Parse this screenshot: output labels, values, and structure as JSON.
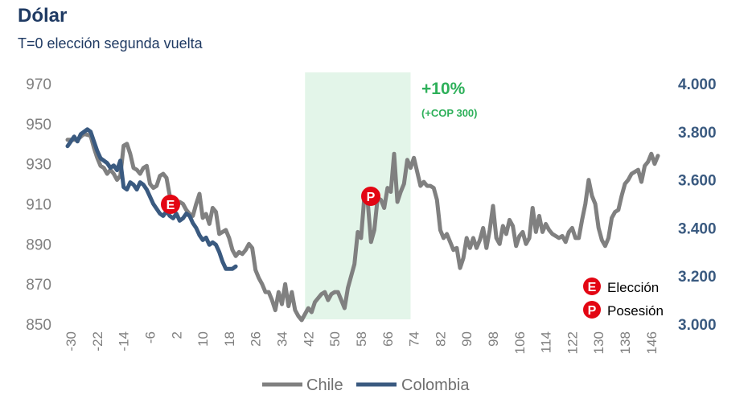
{
  "title": "Dólar",
  "subtitle": "T=0 elección segunda vuelta",
  "colors": {
    "chile": "#808080",
    "colombia": "#3a5a80",
    "highlight": "#e3f5e9",
    "marker": "#e30613",
    "annotation": "#2eb05a"
  },
  "annotation": {
    "main": "+10%",
    "sub": "(+COP 300)"
  },
  "markers": {
    "E": "E",
    "P": "P"
  },
  "marker_key": [
    {
      "letter": "E",
      "label": "Elección"
    },
    {
      "letter": "P",
      "label": "Posesión"
    }
  ],
  "chart_data": {
    "type": "line",
    "title": "Dólar",
    "subtitle": "T=0 elección segunda vuelta",
    "x_ticks": [
      -30,
      -22,
      -14,
      -6,
      2,
      10,
      18,
      26,
      34,
      42,
      50,
      58,
      66,
      74,
      82,
      90,
      98,
      106,
      114,
      122,
      130,
      138,
      146
    ],
    "xlim": [
      -31,
      148
    ],
    "ylim_left": [
      850,
      970
    ],
    "ylim_right": [
      3000,
      4000
    ],
    "left_ticks": [
      "850",
      "870",
      "890",
      "910",
      "930",
      "950",
      "970"
    ],
    "right_ticks": [
      "3.000",
      "3.200",
      "3.400",
      "3.600",
      "3.800",
      "4.000"
    ],
    "highlight_range": [
      41,
      73
    ],
    "legend": [
      "Chile",
      "Colombia"
    ],
    "series": [
      {
        "name": "Chile",
        "axis": "left",
        "points": [
          [
            -31,
            942
          ],
          [
            -28,
            942
          ],
          [
            -26,
            945
          ],
          [
            -24,
            944
          ],
          [
            -23,
            938
          ],
          [
            -22,
            933
          ],
          [
            -21,
            929
          ],
          [
            -20,
            928
          ],
          [
            -19,
            925
          ],
          [
            -18,
            927
          ],
          [
            -17,
            925
          ],
          [
            -16,
            922
          ],
          [
            -15,
            924
          ],
          [
            -14,
            939
          ],
          [
            -13,
            940
          ],
          [
            -12,
            935
          ],
          [
            -11,
            928
          ],
          [
            -10,
            927
          ],
          [
            -9,
            925
          ],
          [
            -8,
            928
          ],
          [
            -7,
            929
          ],
          [
            -6,
            920
          ],
          [
            -5,
            918
          ],
          [
            -4,
            919
          ],
          [
            -3,
            924
          ],
          [
            -2,
            925
          ],
          [
            -1,
            923
          ],
          [
            0,
            914
          ],
          [
            1,
            913
          ],
          [
            2,
            911
          ],
          [
            3,
            911
          ],
          [
            4,
            910
          ],
          [
            5,
            907
          ],
          [
            6,
            905
          ],
          [
            7,
            904
          ],
          [
            8,
            910
          ],
          [
            9,
            915
          ],
          [
            10,
            903
          ],
          [
            11,
            905
          ],
          [
            12,
            900
          ],
          [
            13,
            908
          ],
          [
            14,
            906
          ],
          [
            15,
            895
          ],
          [
            16,
            896
          ],
          [
            17,
            897
          ],
          [
            18,
            893
          ],
          [
            19,
            887
          ],
          [
            20,
            884
          ],
          [
            21,
            886
          ],
          [
            22,
            885
          ],
          [
            23,
            887
          ],
          [
            24,
            890
          ],
          [
            25,
            888
          ],
          [
            26,
            877
          ],
          [
            27,
            873
          ],
          [
            28,
            870
          ],
          [
            29,
            866
          ],
          [
            30,
            866
          ],
          [
            31,
            862
          ],
          [
            32,
            857
          ],
          [
            33,
            866
          ],
          [
            34,
            860
          ],
          [
            35,
            870
          ],
          [
            36,
            859
          ],
          [
            37,
            866
          ],
          [
            38,
            857
          ],
          [
            39,
            854
          ],
          [
            40,
            852
          ],
          [
            41,
            855
          ],
          [
            42,
            858
          ],
          [
            43,
            856
          ],
          [
            44,
            861
          ],
          [
            45,
            863
          ],
          [
            46,
            865
          ],
          [
            47,
            866
          ],
          [
            48,
            862
          ],
          [
            49,
            865
          ],
          [
            50,
            866
          ],
          [
            51,
            866
          ],
          [
            52,
            862
          ],
          [
            53,
            858
          ],
          [
            54,
            868
          ],
          [
            55,
            874
          ],
          [
            56,
            880
          ],
          [
            57,
            896
          ],
          [
            58,
            893
          ],
          [
            59,
            914
          ],
          [
            60,
            911
          ],
          [
            61,
            891
          ],
          [
            62,
            897
          ],
          [
            63,
            913
          ],
          [
            64,
            912
          ],
          [
            65,
            908
          ],
          [
            66,
            918
          ],
          [
            67,
            916
          ],
          [
            68,
            935
          ],
          [
            69,
            911
          ],
          [
            70,
            916
          ],
          [
            71,
            920
          ],
          [
            72,
            932
          ],
          [
            73,
            928
          ],
          [
            74,
            933
          ],
          [
            75,
            926
          ],
          [
            76,
            919
          ],
          [
            77,
            921
          ],
          [
            78,
            919
          ],
          [
            79,
            919
          ],
          [
            80,
            918
          ],
          [
            81,
            912
          ],
          [
            82,
            897
          ],
          [
            83,
            893
          ],
          [
            84,
            895
          ],
          [
            85,
            891
          ],
          [
            86,
            887
          ],
          [
            87,
            888
          ],
          [
            88,
            878
          ],
          [
            89,
            883
          ],
          [
            90,
            893
          ],
          [
            91,
            888
          ],
          [
            92,
            893
          ],
          [
            93,
            888
          ],
          [
            94,
            892
          ],
          [
            95,
            898
          ],
          [
            96,
            888
          ],
          [
            97,
            897
          ],
          [
            98,
            909
          ],
          [
            99,
            893
          ],
          [
            100,
            890
          ],
          [
            101,
            899
          ],
          [
            102,
            895
          ],
          [
            103,
            902
          ],
          [
            104,
            899
          ],
          [
            105,
            889
          ],
          [
            106,
            894
          ],
          [
            107,
            896
          ],
          [
            108,
            890
          ],
          [
            109,
            893
          ],
          [
            110,
            908
          ],
          [
            111,
            896
          ],
          [
            112,
            904
          ],
          [
            113,
            896
          ],
          [
            114,
            900
          ],
          [
            115,
            897
          ],
          [
            116,
            895
          ],
          [
            117,
            894
          ],
          [
            118,
            893
          ],
          [
            119,
            894
          ],
          [
            120,
            891
          ],
          [
            121,
            896
          ],
          [
            122,
            898
          ],
          [
            123,
            893
          ],
          [
            124,
            893
          ],
          [
            125,
            902
          ],
          [
            126,
            910
          ],
          [
            127,
            922
          ],
          [
            128,
            914
          ],
          [
            129,
            910
          ],
          [
            130,
            898
          ],
          [
            131,
            892
          ],
          [
            132,
            889
          ],
          [
            133,
            893
          ],
          [
            134,
            903
          ],
          [
            135,
            906
          ],
          [
            136,
            907
          ],
          [
            137,
            914
          ],
          [
            138,
            920
          ],
          [
            139,
            922
          ],
          [
            140,
            925
          ],
          [
            141,
            926
          ],
          [
            142,
            927
          ],
          [
            143,
            921
          ],
          [
            144,
            929
          ],
          [
            145,
            931
          ],
          [
            146,
            935
          ],
          [
            147,
            930
          ],
          [
            148,
            934
          ]
        ]
      },
      {
        "name": "Colombia",
        "axis": "right",
        "points": [
          [
            -31,
            3740
          ],
          [
            -30,
            3760
          ],
          [
            -29,
            3780
          ],
          [
            -28,
            3760
          ],
          [
            -27,
            3790
          ],
          [
            -26,
            3800
          ],
          [
            -25,
            3810
          ],
          [
            -24,
            3800
          ],
          [
            -23,
            3760
          ],
          [
            -22,
            3720
          ],
          [
            -21,
            3690
          ],
          [
            -20,
            3680
          ],
          [
            -19,
            3670
          ],
          [
            -18,
            3650
          ],
          [
            -17,
            3660
          ],
          [
            -16,
            3640
          ],
          [
            -15,
            3680
          ],
          [
            -14,
            3570
          ],
          [
            -13,
            3560
          ],
          [
            -12,
            3590
          ],
          [
            -11,
            3580
          ],
          [
            -10,
            3560
          ],
          [
            -9,
            3590
          ],
          [
            -8,
            3580
          ],
          [
            -7,
            3560
          ],
          [
            -6,
            3530
          ],
          [
            -5,
            3500
          ],
          [
            -4,
            3480
          ],
          [
            -3,
            3460
          ],
          [
            -2,
            3450
          ],
          [
            -1,
            3470
          ],
          [
            0,
            3450
          ],
          [
            1,
            3440
          ],
          [
            2,
            3460
          ],
          [
            3,
            3430
          ],
          [
            4,
            3440
          ],
          [
            5,
            3460
          ],
          [
            6,
            3450
          ],
          [
            7,
            3420
          ],
          [
            8,
            3400
          ],
          [
            9,
            3370
          ],
          [
            10,
            3350
          ],
          [
            11,
            3360
          ],
          [
            12,
            3330
          ],
          [
            13,
            3340
          ],
          [
            14,
            3330
          ],
          [
            15,
            3300
          ],
          [
            16,
            3260
          ],
          [
            17,
            3230
          ],
          [
            18,
            3230
          ],
          [
            19,
            3230
          ],
          [
            20,
            3240
          ]
        ]
      }
    ]
  }
}
